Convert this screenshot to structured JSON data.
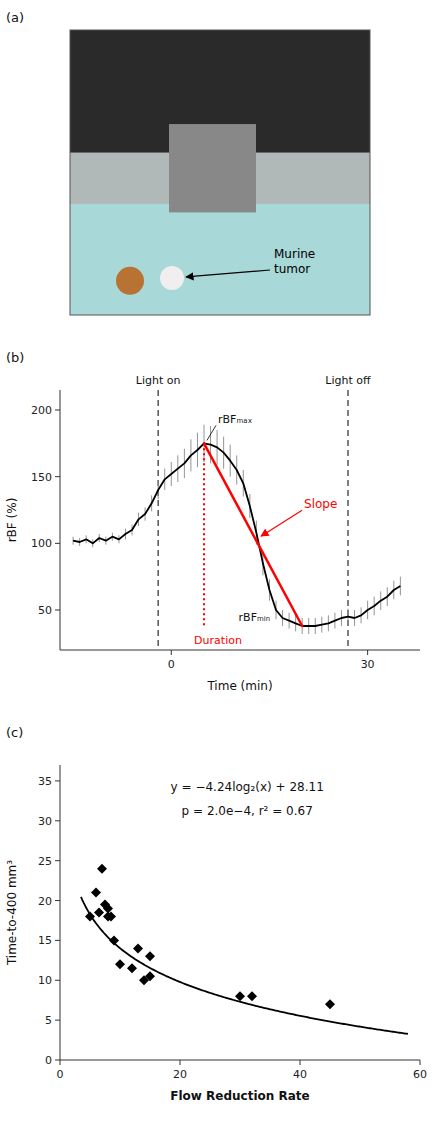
{
  "chart_data": [
    {
      "type": "image",
      "title": "(a)",
      "annotations": [
        "Murine\ntumor"
      ]
    },
    {
      "type": "line",
      "title": "(b)",
      "color": "#000000",
      "x": [
        -15,
        -14,
        -13,
        -12,
        -11,
        -10,
        -9,
        -8,
        -7,
        -6,
        -5,
        -4,
        -3,
        -2,
        -1,
        0,
        1,
        2,
        3,
        4,
        5,
        6,
        7,
        8,
        9,
        10,
        11,
        12,
        13,
        14,
        15,
        16,
        17,
        18,
        19,
        20,
        21,
        22,
        23,
        24,
        25,
        26,
        27,
        28,
        29,
        30,
        31,
        32,
        33,
        34,
        35
      ],
      "values": [
        102,
        101,
        103,
        100,
        104,
        102,
        105,
        103,
        107,
        110,
        118,
        122,
        130,
        140,
        148,
        152,
        156,
        160,
        166,
        170,
        175,
        174,
        172,
        168,
        162,
        155,
        145,
        128,
        108,
        85,
        65,
        50,
        44,
        42,
        40,
        38,
        38,
        38,
        39,
        40,
        42,
        44,
        45,
        44,
        46,
        50,
        53,
        57,
        60,
        65,
        68
      ],
      "errors": [
        3,
        3,
        3,
        3,
        3,
        3,
        3,
        3,
        4,
        4,
        5,
        5,
        6,
        7,
        8,
        9,
        10,
        11,
        12,
        13,
        14,
        14,
        13,
        12,
        12,
        11,
        10,
        9,
        9,
        9,
        8,
        7,
        6,
        6,
        6,
        6,
        6,
        6,
        6,
        6,
        6,
        6,
        6,
        6,
        6,
        7,
        7,
        7,
        7,
        7,
        7
      ],
      "lines": [
        {
          "x": -2,
          "label": "Light on"
        },
        {
          "x": 27,
          "label": "Light off"
        }
      ],
      "slope": {
        "x": [
          5,
          20
        ],
        "y": [
          175,
          38
        ],
        "label": "Slope",
        "color": "#ff0000"
      },
      "duration": {
        "x": 5,
        "y": [
          175,
          38
        ],
        "label": "Duration",
        "color": "#ff0000"
      },
      "extrema": [
        {
          "label": "rBFₘₐₓ",
          "x": 5,
          "y": 175
        },
        {
          "label": "rBFₘᵢₙ",
          "x": 20,
          "y": 38
        }
      ],
      "x_label": "Time (min)",
      "y_label": "rBF (%)",
      "xlim": [
        -17,
        38
      ],
      "ylim": [
        20,
        215
      ],
      "xticks": [
        0,
        30
      ],
      "yticks": [
        50,
        100,
        150,
        200
      ]
    },
    {
      "type": "scatter",
      "title": "(c)",
      "color": "#000000",
      "marker": "diamond",
      "x": [
        5,
        6,
        6.5,
        7,
        7.5,
        8,
        8,
        8.5,
        9,
        10,
        12,
        13,
        14,
        15,
        15,
        30,
        32,
        45
      ],
      "values": [
        18,
        21,
        18.5,
        24,
        19.5,
        18,
        19,
        18,
        15,
        12,
        11.5,
        14,
        10,
        13,
        10.5,
        8,
        8,
        7
      ],
      "fit": {
        "a": -4.24,
        "b": 28.11,
        "x": [
          3.5,
          58
        ]
      },
      "annotations": [
        "y = −4.24log₂(x) + 28.11",
        "p = 2.0e−4, r² = 0.67"
      ],
      "x_label": "Flow Reduction Rate",
      "y_label": "Time-to-400 mm³",
      "xlim": [
        0,
        60
      ],
      "ylim": [
        0,
        37
      ],
      "xticks": [
        0,
        20,
        40,
        60
      ],
      "yticks": [
        0,
        5,
        10,
        15,
        20,
        25,
        30,
        35
      ]
    }
  ]
}
